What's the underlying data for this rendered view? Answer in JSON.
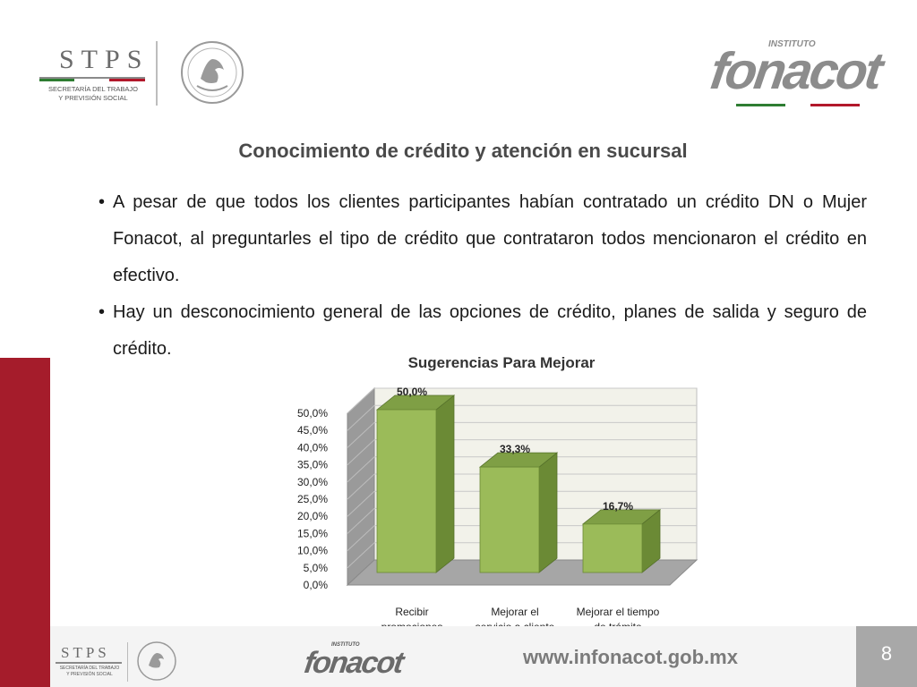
{
  "header": {
    "stps_logo_text": "STPS",
    "stps_subtitle_line1": "SECRETARÍA DEL TRABAJO",
    "stps_subtitle_line2": "Y PREVISIÓN SOCIAL",
    "fonacot_institute": "INSTITUTO",
    "fonacot_logo": "fonacot"
  },
  "slide": {
    "title": "Conocimiento de crédito y atención en sucursal",
    "bullets": [
      "A pesar de que todos los clientes participantes habían contratado un crédito DN o Mujer Fonacot, al preguntarles el tipo de crédito que contrataron todos mencionaron el crédito en efectivo.",
      "Hay un desconocimiento general de las opciones de crédito, planes de salida y seguro de crédito."
    ]
  },
  "chart_data": {
    "type": "bar",
    "title": "Sugerencias Para Mejorar",
    "categories": [
      "Recibir promociones",
      "Mejorar el servicio a cliente",
      "Mejorar el tiempo de trámite"
    ],
    "category_lines": [
      [
        "Recibir",
        "promociones"
      ],
      [
        "Mejorar el",
        "servicio a cliente"
      ],
      [
        "Mejorar el tiempo",
        "de trámite"
      ]
    ],
    "values": [
      50.0,
      33.3,
      16.7
    ],
    "data_labels": [
      "50,0%",
      "33,3%",
      "16,7%"
    ],
    "y_ticks": [
      "0,0%",
      "5,0%",
      "10,0%",
      "15,0%",
      "20,0%",
      "25,0%",
      "30,0%",
      "35,0%",
      "40,0%",
      "45,0%",
      "50,0%"
    ],
    "ylim": [
      0,
      50
    ],
    "grid": true,
    "bar_color": "#9bbb59",
    "bar_side_color": "#6b8a35",
    "bar_top_color": "#7f9f45"
  },
  "footer": {
    "stps_logo_text": "STPS",
    "stps_subtitle_line1": "SECRETARÍA DEL TRABAJO",
    "stps_subtitle_line2": "Y PREVISIÓN SOCIAL",
    "fonacot_institute": "INSTITUTO",
    "fonacot_logo": "fonacot",
    "url": "www.infonacot.gob.mx",
    "page_number": "8"
  },
  "colors": {
    "accent_red": "#a51c2b",
    "title_gray": "#4a4a4a",
    "footer_gray": "#a8a8a8"
  }
}
